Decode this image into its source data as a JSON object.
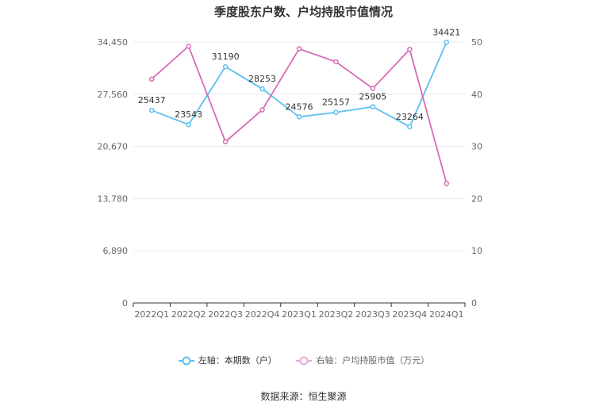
{
  "chart_data": {
    "type": "line",
    "title": "季度股东户数、户均持股市值情况",
    "categories": [
      "2022Q1",
      "2022Q2",
      "2022Q3",
      "2022Q4",
      "2023Q1",
      "2023Q2",
      "2023Q3",
      "2023Q4",
      "2024Q1"
    ],
    "left_axis": {
      "ticks": [
        "0",
        "6,890",
        "13,780",
        "20,670",
        "27,560",
        "34,450"
      ],
      "ylim": [
        0,
        34450
      ]
    },
    "right_axis": {
      "ticks": [
        "0",
        "10",
        "20",
        "30",
        "40",
        "50"
      ],
      "ylim": [
        0,
        50
      ]
    },
    "series": [
      {
        "name": "左轴：本期数（户）",
        "axis": "left",
        "color": "#5bc0f0",
        "values": [
          25437,
          23543,
          31190,
          28253,
          24576,
          25157,
          25905,
          23264,
          34421
        ],
        "labels": [
          "25437",
          "23543",
          "31190",
          "28253",
          "24576",
          "25157",
          "25905",
          "23264",
          "34421"
        ]
      },
      {
        "name": "右轴：户均持股市值（万元）",
        "axis": "right",
        "color": "#d66bb5",
        "values": [
          42.9,
          49.2,
          30.9,
          37.0,
          48.7,
          46.2,
          41.1,
          48.6,
          22.9
        ]
      }
    ],
    "grid": true,
    "legend_position": "bottom"
  },
  "source": "数据来源：恒生聚源"
}
